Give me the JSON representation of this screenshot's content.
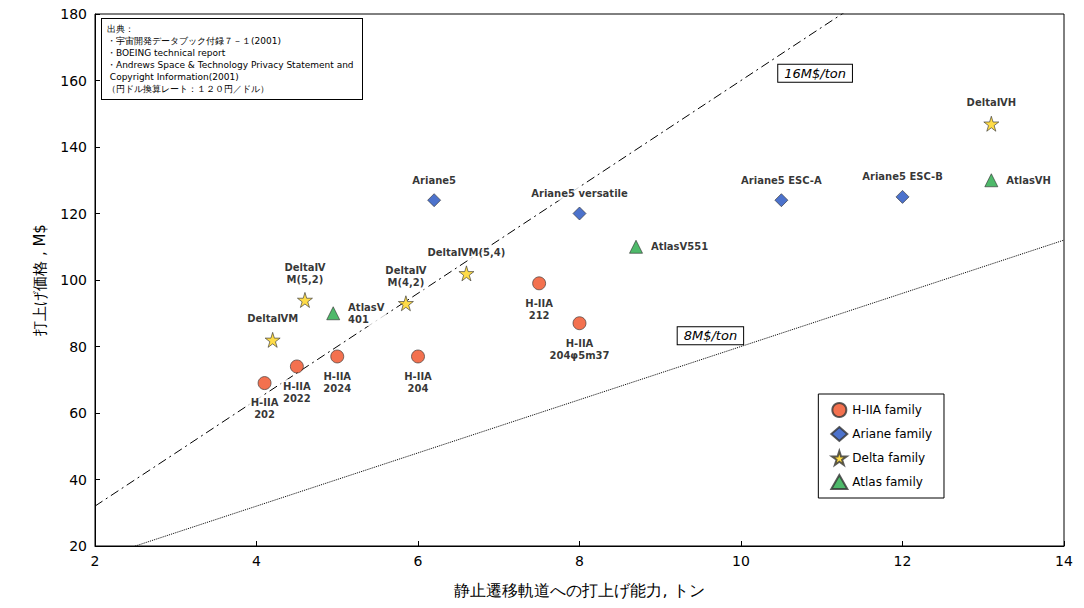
{
  "chart_data": {
    "type": "scatter",
    "x_label": "静止遷移軌道への打上げ能力, トン",
    "y_label": "打上げ価格 , M$",
    "xlim": [
      2,
      14
    ],
    "xticks": [
      2,
      4,
      6,
      8,
      10,
      12,
      14
    ],
    "ylim": [
      20,
      180
    ],
    "yticks": [
      20,
      40,
      60,
      80,
      100,
      120,
      140,
      160,
      180
    ],
    "grid": false,
    "legend": "lower right",
    "source": [
      "出典：",
      "・宇宙開発データブック付録７－１(2001)",
      "・BOEING technical report",
      "・Andrews Space & Technology Privacy Statement and Copyright Information(2001)",
      "（円ドル換算レート：１２０円／ドル）"
    ],
    "reference_lines": [
      {
        "label": "16M$/ton",
        "slope": 16,
        "line_style": "dashdot"
      },
      {
        "label": "8M$/ton",
        "slope": 8,
        "line_style": "dotted"
      }
    ],
    "series": [
      {
        "name": "H-IIA family",
        "color": "#f04e23",
        "marker": "circle",
        "x": [
          4.1,
          4.5,
          5.0,
          6.0,
          7.5,
          8.0
        ],
        "values": [
          69,
          74,
          77,
          77,
          99,
          87
        ],
        "point_labels": [
          "H-IIA\n202",
          "H-IIA\n2022",
          "H-IIA\n2024",
          "H-IIA\n204",
          "H-IIA\n212",
          "H-IIA\n204φ5m37"
        ]
      },
      {
        "name": "Ariane family",
        "color": "#1f4fbf",
        "marker": "diamond",
        "x": [
          6.2,
          8.0,
          10.5,
          12.0
        ],
        "values": [
          124,
          120,
          124,
          125
        ],
        "point_labels": [
          "Ariane5",
          "Ariane5 versatile",
          "Ariane5 ESC-A",
          "Ariane5 ESC-B"
        ]
      },
      {
        "name": "Delta family",
        "color": "#ffd31a",
        "marker": "star",
        "x": [
          4.2,
          4.6,
          5.85,
          6.6,
          13.1
        ],
        "values": [
          82,
          94,
          93,
          102,
          147
        ],
        "point_labels": [
          "DeltaⅣM",
          "DeltaⅣ\nM(5,2)",
          "DeltaⅣ\nM(4,2)",
          "DeltaⅣM(5,4)",
          "DeltaⅣH"
        ]
      },
      {
        "name": "Atlas family",
        "color": "#22a845",
        "marker": "triangle",
        "x": [
          4.95,
          8.7,
          13.1
        ],
        "values": [
          90,
          110,
          130
        ],
        "point_labels": [
          "AtlasⅤ\n401",
          "AtlasⅤ551",
          "AtlasⅤH"
        ]
      }
    ]
  }
}
